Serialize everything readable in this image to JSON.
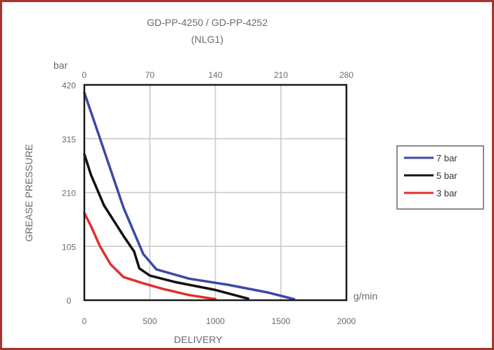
{
  "colors": {
    "frame_border": "#a8342e",
    "grid": "#c8c8c8",
    "axes": "#1a1a1a",
    "text": "#6b6b6b"
  },
  "chart_data": {
    "type": "line",
    "title": "GD-PP-4250 / GD-PP-4252",
    "subtitle": "(NLG1)",
    "xlabel": "DELIVERY",
    "x_unit": "g/min",
    "ylabel": "GREASE PRESSURE",
    "y_unit": "bar",
    "xlim": [
      0,
      2000
    ],
    "ylim": [
      0,
      420
    ],
    "x_ticks": [
      0,
      500,
      1000,
      1500,
      2000
    ],
    "y_ticks": [
      0,
      105,
      210,
      315,
      420
    ],
    "x_tick_labels": [
      "0",
      "500",
      "1000",
      "1500",
      "2000"
    ],
    "y_tick_labels": [
      "0",
      "105",
      "210",
      "315",
      "420"
    ],
    "top_ticks": [
      0,
      70,
      140,
      210,
      280
    ],
    "top_tick_labels": [
      "0",
      "70",
      "140",
      "210",
      "280"
    ],
    "grid": true,
    "legend_position": "right",
    "series": [
      {
        "name": "7 bar",
        "color": "#3a4aa6",
        "points": [
          [
            0,
            405
          ],
          [
            100,
            330
          ],
          [
            300,
            180
          ],
          [
            450,
            90
          ],
          [
            550,
            60
          ],
          [
            800,
            42
          ],
          [
            1100,
            30
          ],
          [
            1400,
            15
          ],
          [
            1600,
            2
          ]
        ]
      },
      {
        "name": "5 bar",
        "color": "#111111",
        "points": [
          [
            0,
            285
          ],
          [
            50,
            245
          ],
          [
            150,
            185
          ],
          [
            300,
            125
          ],
          [
            380,
            95
          ],
          [
            420,
            62
          ],
          [
            500,
            48
          ],
          [
            700,
            35
          ],
          [
            1000,
            20
          ],
          [
            1250,
            3
          ]
        ]
      },
      {
        "name": "3 bar",
        "color": "#e0302c",
        "points": [
          [
            0,
            170
          ],
          [
            50,
            145
          ],
          [
            120,
            105
          ],
          [
            200,
            70
          ],
          [
            300,
            45
          ],
          [
            450,
            33
          ],
          [
            600,
            22
          ],
          [
            800,
            10
          ],
          [
            1000,
            2
          ]
        ]
      }
    ]
  }
}
